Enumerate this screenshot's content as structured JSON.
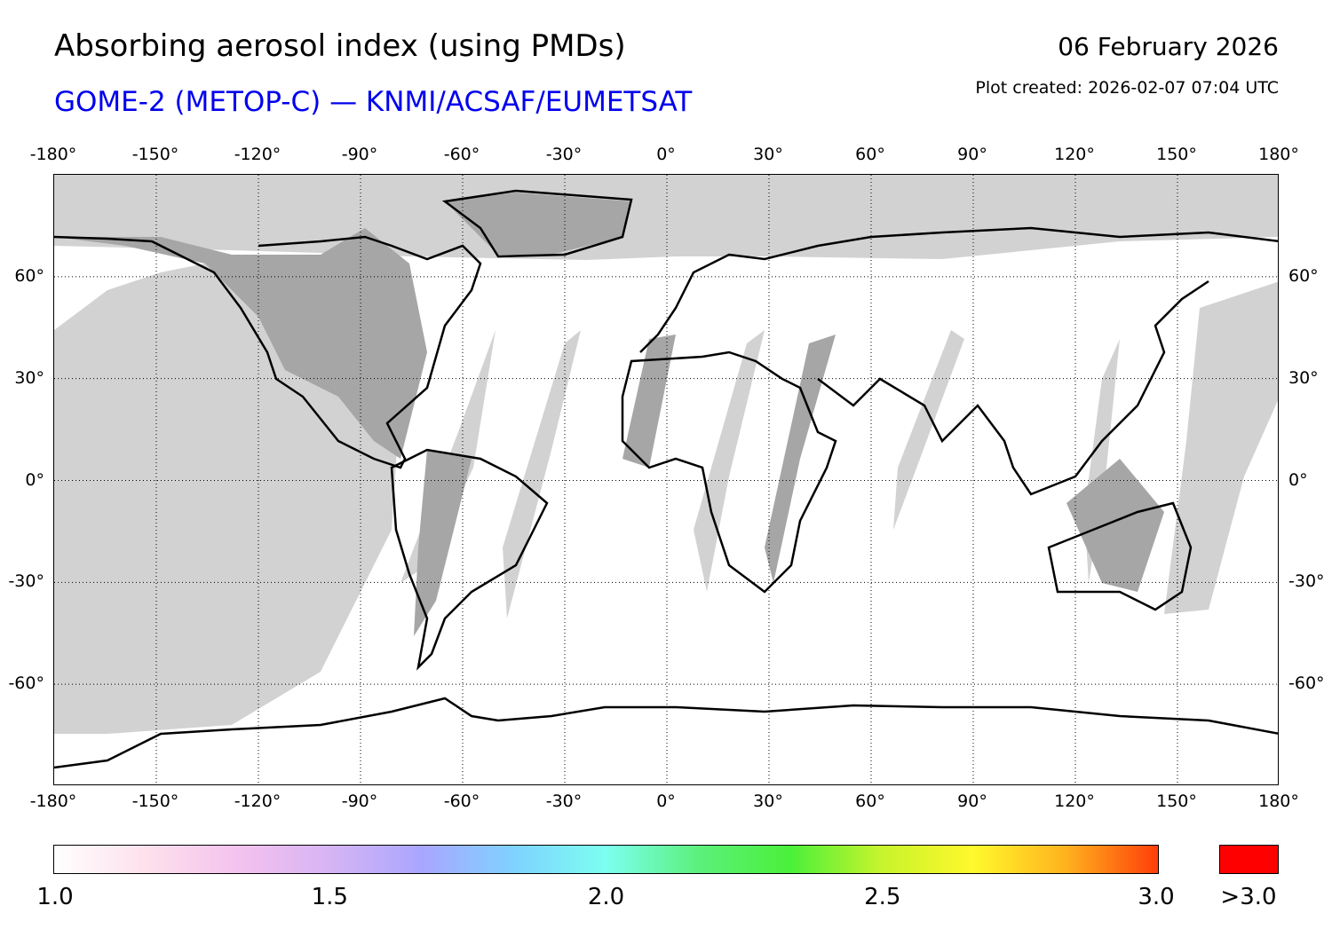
{
  "header": {
    "title": "Absorbing aerosol index (using PMDs)",
    "subtitle": "GOME-2 (METOP-C) — KNMI/ACSAF/EUMETSAT",
    "date": "06 February 2026",
    "plot_created": "Plot created: 2026-02-07 07:04 UTC"
  },
  "map": {
    "lon_ticks": [
      "-180°",
      "-150°",
      "-120°",
      "-90°",
      "-60°",
      "-30°",
      "0°",
      "30°",
      "60°",
      "90°",
      "120°",
      "150°",
      "180°"
    ],
    "lon_values": [
      -180,
      -150,
      -120,
      -90,
      -60,
      -30,
      0,
      30,
      60,
      90,
      120,
      150,
      180
    ],
    "lat_ticks": [
      "60°",
      "30°",
      "0°",
      "-30°",
      "-60°"
    ],
    "lat_values": [
      60,
      30,
      0,
      -30,
      -60
    ],
    "lon_range": [
      -180,
      180
    ],
    "lat_range": [
      -90,
      90
    ],
    "colors": {
      "no_data_light": "#d2d2d2",
      "land_no_data": "#a6a6a6",
      "coastline": "#000000",
      "grid": "#000000"
    }
  },
  "colorbar": {
    "tick_labels": [
      "1.0",
      "1.5",
      "2.0",
      "2.5",
      "3.0"
    ],
    "tick_values": [
      1.0,
      1.5,
      2.0,
      2.5,
      3.0
    ],
    "range": [
      1.0,
      3.0
    ],
    "overflow_label": ">3.0",
    "overflow_color": "#ff0000",
    "gradient_stops": [
      "#ffffff",
      "#fde0ec",
      "#f4c2ee",
      "#d6b4f4",
      "#a9a6ff",
      "#7fd2ff",
      "#7cfff0",
      "#5cf07c",
      "#4af03a",
      "#c8f42c",
      "#fff82c",
      "#ffb21e",
      "#ff3e0a"
    ]
  }
}
